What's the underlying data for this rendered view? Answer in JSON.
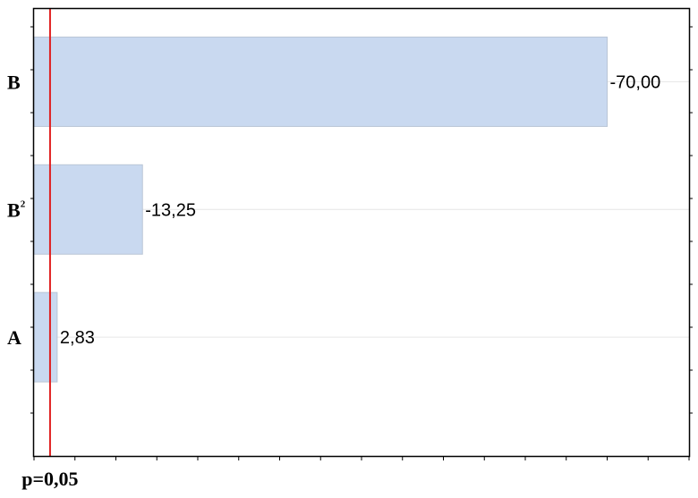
{
  "chart_data": {
    "type": "bar",
    "orientation": "horizontal",
    "categories": [
      "B",
      "B2",
      "A"
    ],
    "category_display": [
      {
        "base": "B",
        "sup": ""
      },
      {
        "base": "B",
        "sup": "2"
      },
      {
        "base": "A",
        "sup": ""
      }
    ],
    "values": [
      70.0,
      13.25,
      2.83
    ],
    "value_labels": [
      "-70,00",
      "-13,25",
      "2,83"
    ],
    "xlim": [
      0,
      80
    ],
    "reference_line": {
      "value": 1.96,
      "label": "p=0,05",
      "color": "#e02020"
    },
    "bar_color": "#c9d9f0",
    "bar_edge_color": "#b9c5d6",
    "grid": true,
    "legend": "none"
  }
}
